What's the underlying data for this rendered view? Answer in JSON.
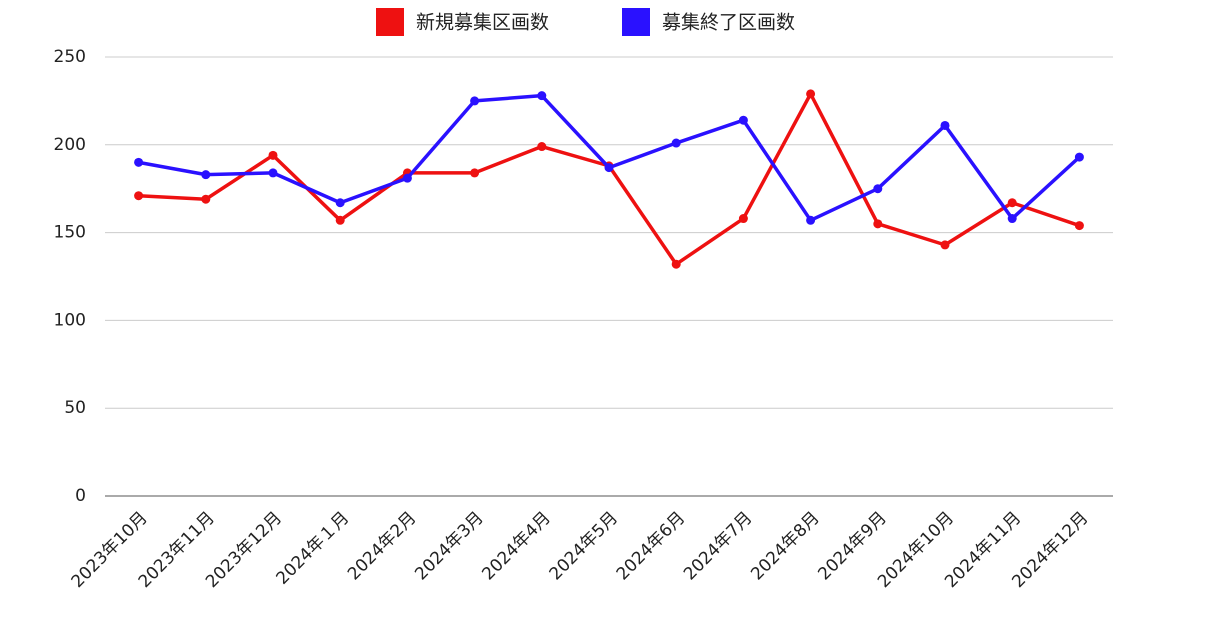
{
  "chart_data": {
    "type": "line",
    "categories": [
      "2023年10月",
      "2023年11月",
      "2023年12月",
      "2024年１月",
      "2024年2月",
      "2024年3月",
      "2024年4月",
      "2024年5月",
      "2024年6月",
      "2024年7月",
      "2024年8月",
      "2024年9月",
      "2024年10月",
      "2024年11月",
      "2024年12月"
    ],
    "series": [
      {
        "name": "新規募集区画数",
        "color": "#ee1111",
        "values": [
          171,
          169,
          194,
          157,
          184,
          184,
          199,
          188,
          132,
          158,
          229,
          155,
          143,
          167,
          154
        ]
      },
      {
        "name": "募集終了区画数",
        "color": "#2a11ff",
        "values": [
          190,
          183,
          184,
          167,
          181,
          225,
          228,
          187,
          201,
          214,
          157,
          175,
          211,
          158,
          193
        ]
      }
    ],
    "ylim": [
      0,
      250
    ],
    "yticks": [
      0,
      50,
      100,
      150,
      200,
      250
    ],
    "grid": true,
    "legend": "top"
  }
}
